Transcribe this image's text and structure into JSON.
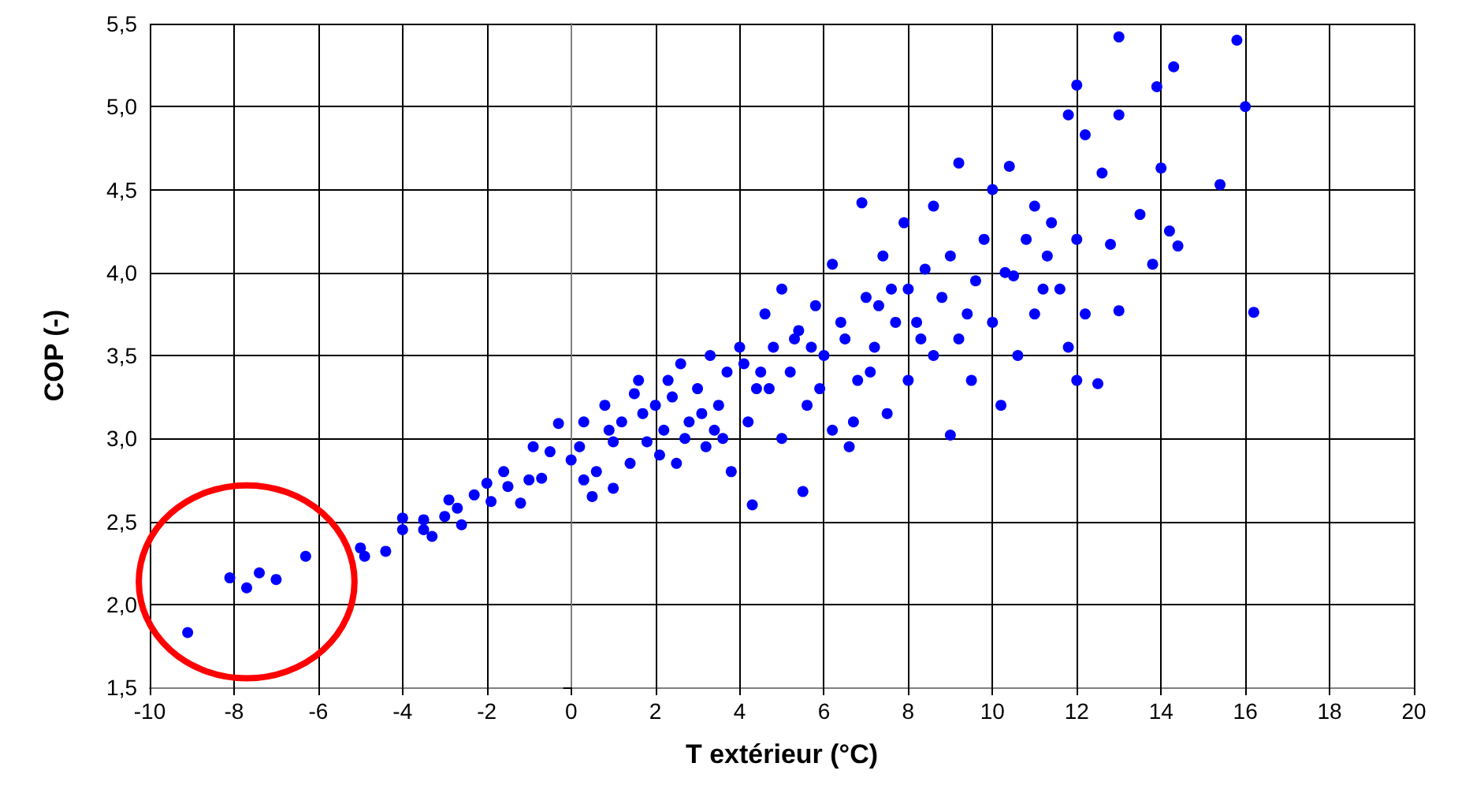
{
  "chart_data": {
    "type": "scatter",
    "xlabel": "T extérieur (°C)",
    "ylabel": "COP (-)",
    "xlim": [
      -10,
      20
    ],
    "xticks": [
      -10,
      -8,
      -6,
      -4,
      -2,
      0,
      2,
      4,
      6,
      8,
      10,
      12,
      14,
      16,
      18,
      20
    ],
    "ylim": [
      1.5,
      5.5
    ],
    "yticks": [
      {
        "value": 1.5,
        "label": "1,5"
      },
      {
        "value": 2,
        "label": "2,0"
      },
      {
        "value": 2.5,
        "label": "2,5"
      },
      {
        "value": 3,
        "label": "3,0"
      },
      {
        "value": 3.5,
        "label": "3,5"
      },
      {
        "value": 4,
        "label": "4,0"
      },
      {
        "value": 4.5,
        "label": "4,5"
      },
      {
        "value": 5,
        "label": "5,0"
      },
      {
        "value": 5.5,
        "label": "5,5"
      }
    ],
    "grid": true,
    "marker": "circle",
    "series": [
      {
        "color": "#0000ff",
        "x": [
          -9.1,
          -8.1,
          -7.7,
          -7.4,
          -7.0,
          -6.3,
          -5.0,
          -4.9,
          -4.4,
          -4.0,
          -4.0,
          -3.5,
          -3.5,
          -3.3,
          -3.0,
          -2.9,
          -2.7,
          -2.6,
          -2.3,
          -2.0,
          -1.9,
          -1.6,
          -1.5,
          -1.2,
          -1.0,
          -0.7,
          -0.9,
          -0.5,
          -0.3,
          0.0,
          0.2,
          0.3,
          0.5,
          0.6,
          0.3,
          0.8,
          1.0,
          1.2,
          1.5,
          1.6,
          1.8,
          2.0,
          2.2,
          2.3,
          2.5,
          2.6,
          2.8,
          3.0,
          3.2,
          3.3,
          3.5,
          3.7,
          3.8,
          4.0,
          4.2,
          4.3,
          4.4,
          4.6,
          4.8,
          5.0,
          5.0,
          5.2,
          5.4,
          5.5,
          5.6,
          5.8,
          6.0,
          6.2,
          6.2,
          6.4,
          6.6,
          6.8,
          6.9,
          7.0,
          7.2,
          7.4,
          7.5,
          7.7,
          7.9,
          8.0,
          8.0,
          8.2,
          8.4,
          8.6,
          8.6,
          8.8,
          9.0,
          9.0,
          9.2,
          9.2,
          9.5,
          9.6,
          9.8,
          10.0,
          10.0,
          10.2,
          10.4,
          10.5,
          10.6,
          10.8,
          11.0,
          11.0,
          11.2,
          11.4,
          11.6,
          11.8,
          11.8,
          12.0,
          12.0,
          12.0,
          12.2,
          12.2,
          12.5,
          12.6,
          12.8,
          13.0,
          13.0,
          13.0,
          13.5,
          13.8,
          13.9,
          14.0,
          14.2,
          14.3,
          14.4,
          15.4,
          15.8,
          16.0,
          16.2,
          1.0,
          1.4,
          2.1,
          2.7,
          3.1,
          3.6,
          4.1,
          4.7,
          5.3,
          5.9,
          6.5,
          7.1,
          7.6,
          8.3,
          0.9,
          1.7,
          2.4,
          3.4,
          4.5,
          5.7,
          6.7,
          7.3,
          9.4,
          10.3,
          11.3
        ],
        "values": [
          1.83,
          2.16,
          2.1,
          2.19,
          2.15,
          2.29,
          2.34,
          2.29,
          2.32,
          2.45,
          2.52,
          2.51,
          2.45,
          2.41,
          2.53,
          2.63,
          2.58,
          2.48,
          2.66,
          2.73,
          2.62,
          2.8,
          2.71,
          2.61,
          2.75,
          2.76,
          2.95,
          2.92,
          3.09,
          2.87,
          2.95,
          2.75,
          2.65,
          2.8,
          3.1,
          3.2,
          2.98,
          3.1,
          3.27,
          3.35,
          2.98,
          3.2,
          3.05,
          3.35,
          2.85,
          3.45,
          3.1,
          3.3,
          2.95,
          3.5,
          3.2,
          3.4,
          2.8,
          3.55,
          3.1,
          2.6,
          3.3,
          3.75,
          3.55,
          3.0,
          3.9,
          3.4,
          3.65,
          2.68,
          3.2,
          3.8,
          3.5,
          4.05,
          3.05,
          3.7,
          2.95,
          3.35,
          4.42,
          3.85,
          3.55,
          4.1,
          3.15,
          3.7,
          4.3,
          3.9,
          3.35,
          3.7,
          4.02,
          3.5,
          4.4,
          3.85,
          3.02,
          4.1,
          3.6,
          4.66,
          3.35,
          3.95,
          4.2,
          4.5,
          3.7,
          3.2,
          4.64,
          3.98,
          3.5,
          4.2,
          4.4,
          3.75,
          3.9,
          4.3,
          3.9,
          3.55,
          4.95,
          5.13,
          3.35,
          4.2,
          4.83,
          3.75,
          3.33,
          4.6,
          4.17,
          5.42,
          4.95,
          3.77,
          4.35,
          4.05,
          5.12,
          4.63,
          4.25,
          5.24,
          4.16,
          4.53,
          5.4,
          5.0,
          3.76,
          2.7,
          2.85,
          2.9,
          3.0,
          3.15,
          3.0,
          3.45,
          3.3,
          3.6,
          3.3,
          3.6,
          3.4,
          3.9,
          3.6,
          3.05,
          3.15,
          3.25,
          3.05,
          3.4,
          3.55,
          3.1,
          3.8,
          3.75,
          4.0,
          4.1
        ]
      }
    ]
  }
}
